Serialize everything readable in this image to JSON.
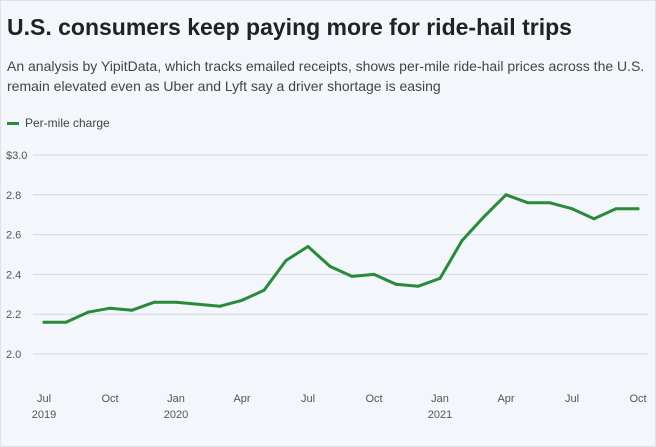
{
  "header": {
    "title": "U.S. consumers keep paying more for ride-hail trips",
    "subtitle": "An analysis by YipitData, which tracks emailed receipts, shows per-mile ride-hail prices across the U.S. remain elevated even as Uber and Lyft say a driver shortage is easing"
  },
  "colors": {
    "series": "#2a8a3a",
    "background": "#f3f6fa",
    "grid": "#d3d9e0"
  },
  "chart_data": {
    "type": "line",
    "title": "U.S. consumers keep paying more for ride-hail trips",
    "xlabel": "",
    "ylabel": "",
    "ylim": [
      2.0,
      3.0
    ],
    "grid": true,
    "legend_position": "top-left",
    "y_ticks": [
      {
        "value": 3.0,
        "label": "$3.0"
      },
      {
        "value": 2.8,
        "label": "2.8"
      },
      {
        "value": 2.6,
        "label": "2.6"
      },
      {
        "value": 2.4,
        "label": "2.4"
      },
      {
        "value": 2.2,
        "label": "2.2"
      },
      {
        "value": 2.0,
        "label": "2.0"
      }
    ],
    "x_ticks": [
      {
        "month": "2019-07",
        "label": "Jul",
        "year_label": "2019"
      },
      {
        "month": "2019-10",
        "label": "Oct",
        "year_label": ""
      },
      {
        "month": "2020-01",
        "label": "Jan",
        "year_label": "2020"
      },
      {
        "month": "2020-04",
        "label": "Apr",
        "year_label": ""
      },
      {
        "month": "2020-07",
        "label": "Jul",
        "year_label": ""
      },
      {
        "month": "2020-10",
        "label": "Oct",
        "year_label": ""
      },
      {
        "month": "2021-01",
        "label": "Jan",
        "year_label": "2021"
      },
      {
        "month": "2021-04",
        "label": "Apr",
        "year_label": ""
      },
      {
        "month": "2021-07",
        "label": "Jul",
        "year_label": ""
      },
      {
        "month": "2021-10",
        "label": "Oct",
        "year_label": ""
      }
    ],
    "series": [
      {
        "name": "Per-mile charge",
        "x": [
          "2019-07",
          "2019-08",
          "2019-09",
          "2019-10",
          "2019-11",
          "2019-12",
          "2020-01",
          "2020-02",
          "2020-03",
          "2020-04",
          "2020-05",
          "2020-06",
          "2020-07",
          "2020-08",
          "2020-09",
          "2020-10",
          "2020-11",
          "2020-12",
          "2021-01",
          "2021-02",
          "2021-03",
          "2021-04",
          "2021-05",
          "2021-06",
          "2021-07",
          "2021-08",
          "2021-09",
          "2021-10"
        ],
        "values": [
          2.16,
          2.16,
          2.21,
          2.23,
          2.22,
          2.26,
          2.26,
          2.25,
          2.24,
          2.27,
          2.32,
          2.47,
          2.54,
          2.44,
          2.39,
          2.4,
          2.35,
          2.34,
          2.38,
          2.57,
          2.69,
          2.8,
          2.76,
          2.76,
          2.73,
          2.68,
          2.73,
          2.73
        ]
      }
    ]
  }
}
